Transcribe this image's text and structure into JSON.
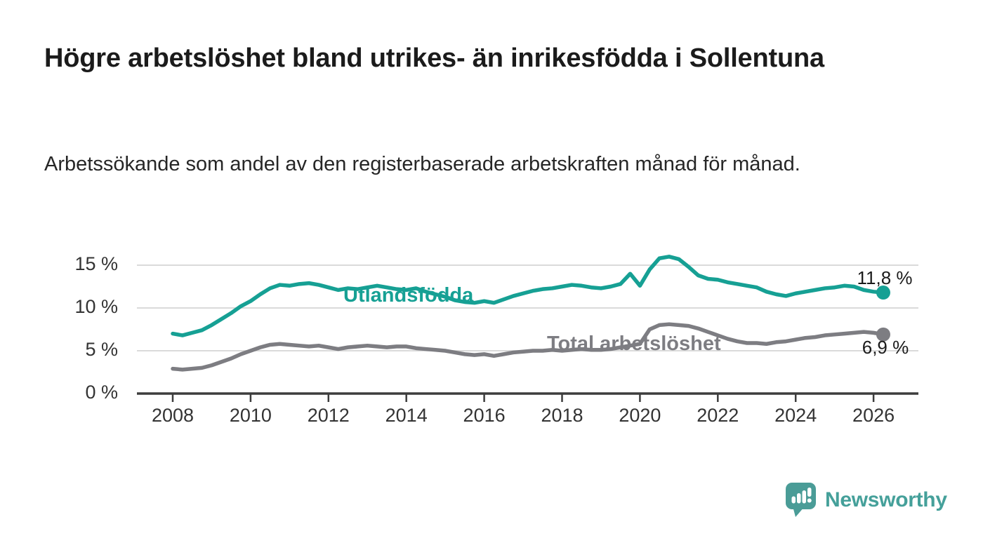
{
  "header": {
    "title": "Högre arbetslöshet bland utrikes- än inrikesfödda i Sollentuna",
    "subtitle": "Arbetssökande som andel av den registerbaserade arbetskraften månad för månad."
  },
  "chart_data": {
    "type": "line",
    "title": "Högre arbetslöshet bland utrikes- än inrikesfödda i Sollentuna",
    "xlabel": "",
    "ylabel": "",
    "x_unit": "year (monthly share series, quarterly sampled)",
    "x_start": 2008,
    "x_step": 0.25,
    "xlim": [
      2007.1,
      2027.1
    ],
    "ylim": [
      0,
      16.5
    ],
    "grid": "horizontal",
    "legend": "inline-labels",
    "grid_color": "#dadada",
    "axis_color": "#3d3d3d",
    "tick_label_color": "#333333",
    "yticks": [
      {
        "v": 0,
        "label": "0 %"
      },
      {
        "v": 5,
        "label": "5 %"
      },
      {
        "v": 10,
        "label": "10 %"
      },
      {
        "v": 15,
        "label": "15 %"
      }
    ],
    "xticks": [
      {
        "v": 2008,
        "label": "2008"
      },
      {
        "v": 2010,
        "label": "2010"
      },
      {
        "v": 2012,
        "label": "2012"
      },
      {
        "v": 2014,
        "label": "2014"
      },
      {
        "v": 2016,
        "label": "2016"
      },
      {
        "v": 2018,
        "label": "2018"
      },
      {
        "v": 2020,
        "label": "2020"
      },
      {
        "v": 2022,
        "label": "2022"
      },
      {
        "v": 2024,
        "label": "2024"
      },
      {
        "v": 2026,
        "label": "2026"
      }
    ],
    "series": [
      {
        "name": "utlandsfodda",
        "label": "Utlandsfödda",
        "color": "#16a094",
        "end_label": "11,8 %",
        "end_value": 11.8,
        "values": [
          7.0,
          6.8,
          7.1,
          7.4,
          8.0,
          8.7,
          9.4,
          10.2,
          10.8,
          11.6,
          12.3,
          12.7,
          12.6,
          12.8,
          12.9,
          12.7,
          12.4,
          12.1,
          12.3,
          12.2,
          12.4,
          12.6,
          12.4,
          12.2,
          12.1,
          12.3,
          11.9,
          11.6,
          11.3,
          10.9,
          10.7,
          10.6,
          10.8,
          10.6,
          11.0,
          11.4,
          11.7,
          12.0,
          12.2,
          12.3,
          12.5,
          12.7,
          12.6,
          12.4,
          12.3,
          12.5,
          12.8,
          14.0,
          12.6,
          14.5,
          15.8,
          16.0,
          15.7,
          14.8,
          13.8,
          13.4,
          13.3,
          13.0,
          12.8,
          12.6,
          12.4,
          11.9,
          11.6,
          11.4,
          11.7,
          11.9,
          12.1,
          12.3,
          12.4,
          12.6,
          12.5,
          12.1,
          11.9,
          11.8
        ]
      },
      {
        "name": "total-arbetsloshet",
        "label": "Total arbetslöshet",
        "color": "#7d7d82",
        "end_label": "6,9 %",
        "end_value": 6.9,
        "values": [
          2.9,
          2.8,
          2.9,
          3.0,
          3.3,
          3.7,
          4.1,
          4.6,
          5.0,
          5.4,
          5.7,
          5.8,
          5.7,
          5.6,
          5.5,
          5.6,
          5.4,
          5.2,
          5.4,
          5.5,
          5.6,
          5.5,
          5.4,
          5.5,
          5.5,
          5.3,
          5.2,
          5.1,
          5.0,
          4.8,
          4.6,
          4.5,
          4.6,
          4.4,
          4.6,
          4.8,
          4.9,
          5.0,
          5.0,
          5.1,
          5.0,
          5.1,
          5.2,
          5.1,
          5.1,
          5.2,
          5.4,
          5.6,
          5.8,
          7.5,
          8.0,
          8.1,
          8.0,
          7.9,
          7.6,
          7.2,
          6.8,
          6.4,
          6.1,
          5.9,
          5.9,
          5.8,
          6.0,
          6.1,
          6.3,
          6.5,
          6.6,
          6.8,
          6.9,
          7.0,
          7.1,
          7.2,
          7.1,
          6.9
        ]
      }
    ]
  },
  "footer": {
    "brand": "Newsworthy",
    "brand_color": "#45a09a",
    "logo_color": "#4a9c97"
  }
}
